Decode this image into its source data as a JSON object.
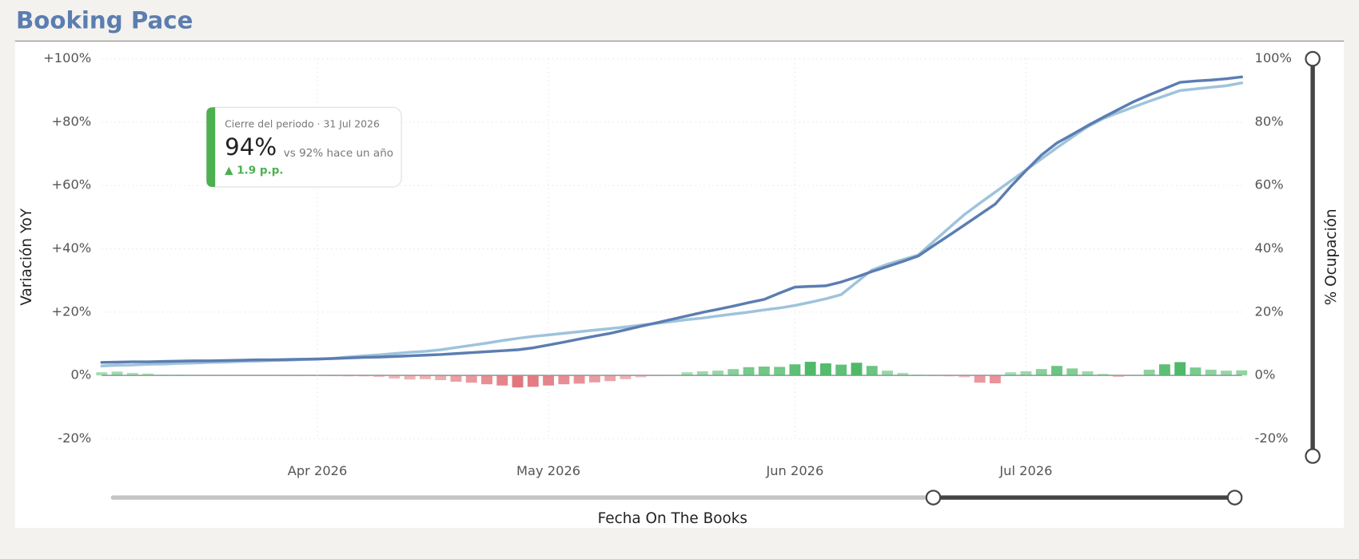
{
  "chart_data": {
    "type": "line-bar",
    "title": "Booking Pace",
    "y_label": "Variación YoY",
    "y2_label": "% Ocupación",
    "x_label": "Fecha On The Books",
    "card": {
      "label": "Cierre del periodo · 31 Jul 2026",
      "value": "94%",
      "comparison": "vs 92% hace un año",
      "delta": "▲ 1.9 p.p."
    },
    "categories": [
      null,
      null,
      null,
      null,
      null,
      null,
      null,
      null,
      null,
      null,
      null,
      null,
      null,
      null,
      "Apr 2026",
      null,
      null,
      null,
      null,
      null,
      null,
      null,
      null,
      null,
      null,
      null,
      null,
      null,
      null,
      "May 2026",
      null,
      null,
      null,
      null,
      null,
      null,
      null,
      null,
      null,
      null,
      null,
      null,
      null,
      null,
      null,
      "Jun 2026",
      null,
      null,
      null,
      null,
      null,
      null,
      null,
      null,
      null,
      null,
      null,
      null,
      null,
      null,
      "Jul 2026",
      null,
      null,
      null,
      null,
      null,
      null,
      null,
      null,
      null,
      null,
      null,
      null,
      null,
      null
    ],
    "series": [
      {
        "type": "line",
        "axis": "y2",
        "color": "#9ec3dc",
        "values": [
          3.0,
          3.2,
          3.3,
          3.5,
          3.6,
          3.8,
          3.9,
          4.1,
          4.2,
          4.4,
          4.5,
          4.7,
          4.8,
          5.0,
          5.1,
          5.4,
          5.8,
          6.2,
          6.5,
          6.9,
          7.3,
          7.6,
          8.1,
          8.8,
          9.5,
          10.2,
          11.0,
          11.7,
          12.3,
          12.8,
          13.3,
          13.8,
          14.3,
          14.8,
          15.3,
          15.9,
          16.4,
          17.0,
          17.6,
          18.1,
          18.8,
          19.4,
          20.0,
          20.7,
          21.3,
          22.1,
          23.1,
          24.2,
          25.5,
          29.4,
          33.3,
          35.1,
          36.6,
          38.0,
          42.3,
          46.6,
          50.8,
          54.4,
          57.9,
          61.4,
          64.9,
          68.4,
          71.9,
          75.3,
          78.6,
          81.1,
          83.0,
          84.8,
          86.6,
          88.3,
          90.0,
          90.5,
          91.0,
          91.5,
          92.4
        ]
      },
      {
        "type": "line",
        "axis": "y2",
        "color": "#5b7db1",
        "values": [
          4.1,
          4.2,
          4.3,
          4.3,
          4.4,
          4.5,
          4.6,
          4.6,
          4.7,
          4.8,
          4.9,
          4.9,
          5.0,
          5.1,
          5.2,
          5.3,
          5.5,
          5.7,
          5.8,
          6.0,
          6.2,
          6.4,
          6.6,
          6.9,
          7.2,
          7.5,
          7.8,
          8.1,
          8.7,
          9.6,
          10.5,
          11.5,
          12.4,
          13.3,
          14.4,
          15.5,
          16.6,
          17.7,
          18.8,
          19.9,
          20.9,
          21.9,
          23.0,
          24.0,
          26.0,
          27.9,
          28.1,
          28.3,
          29.5,
          31.1,
          32.8,
          34.4,
          36.0,
          37.7,
          41.0,
          44.2,
          47.5,
          50.8,
          54.1,
          59.6,
          64.7,
          69.6,
          73.4,
          76.1,
          78.9,
          81.5,
          84.0,
          86.5,
          88.6,
          90.6,
          92.6,
          93.0,
          93.3,
          93.7,
          94.3
        ]
      },
      {
        "type": "bar",
        "axis": "y",
        "color_positive": "#4fb96a",
        "color_negative": "#e0727a",
        "values": [
          1.0,
          1.2,
          0.8,
          0.6,
          0.2,
          0.2,
          0.1,
          0.1,
          0.1,
          0.1,
          0.1,
          0.1,
          0,
          0,
          0,
          -0.2,
          -0.3,
          -0.3,
          -0.5,
          -1.0,
          -1.3,
          -1.2,
          -1.5,
          -2.0,
          -2.3,
          -2.8,
          -3.2,
          -3.8,
          -3.6,
          -3.2,
          -2.8,
          -2.6,
          -2.2,
          -1.8,
          -1.2,
          -0.6,
          -0.2,
          0.1,
          1.0,
          1.3,
          1.5,
          2.0,
          2.6,
          2.8,
          2.7,
          3.5,
          4.3,
          3.8,
          3.4,
          4.0,
          3.0,
          1.5,
          0.8,
          0.2,
          -0.2,
          -0.3,
          -0.6,
          -2.3,
          -2.5,
          1.0,
          1.3,
          2.0,
          3.0,
          2.2,
          1.3,
          0.5,
          -0.5,
          0.1,
          1.8,
          3.5,
          4.2,
          2.5,
          1.8,
          1.5,
          1.6
        ]
      }
    ],
    "ylim": [
      -20,
      100
    ],
    "yticks": [
      {
        "value": -20,
        "label": "-20%"
      },
      {
        "value": 0,
        "label": "0%"
      },
      {
        "value": 20,
        "label": "+20%"
      },
      {
        "value": 40,
        "label": "+40%"
      },
      {
        "value": 60,
        "label": "+60%"
      },
      {
        "value": 80,
        "label": "+80%"
      },
      {
        "value": 100,
        "label": "+100%"
      }
    ],
    "y2lim": [
      -20,
      100
    ],
    "y2ticks": [
      {
        "value": -20,
        "label": "-20%"
      },
      {
        "value": 0,
        "label": "0%"
      },
      {
        "value": 20,
        "label": "20%"
      },
      {
        "value": 40,
        "label": "40%"
      },
      {
        "value": 60,
        "label": "60%"
      },
      {
        "value": 80,
        "label": "80%"
      },
      {
        "value": 100,
        "label": "100%"
      }
    ],
    "grid": true
  }
}
